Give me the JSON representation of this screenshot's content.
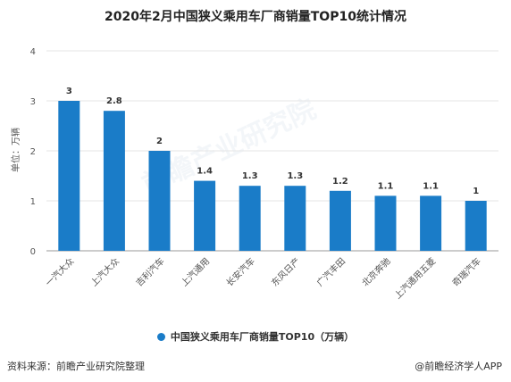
{
  "title": "2020年2月中国狭义乘用车厂商销量TOP10统计情况",
  "source": "资料来源：前瞻产业研究院整理",
  "brand": "@前瞻经济学人APP",
  "watermark": "前瞻产业研究院",
  "colors": {
    "bar": "#1a7cc8",
    "grid": "#e6e6e6",
    "axis": "#999999"
  },
  "chart_data": {
    "type": "bar",
    "title": "2020年2月中国狭义乘用车厂商销量TOP10统计情况",
    "ylabel": "单位：万辆",
    "xlabel": "",
    "ylim": [
      0,
      4
    ],
    "yticks": [
      0,
      1,
      2,
      3,
      4
    ],
    "grid": true,
    "legend_position": "bottom",
    "categories": [
      "一汽大众",
      "上汽大众",
      "吉利汽车",
      "上汽通用",
      "长安汽车",
      "东风日产",
      "广汽丰田",
      "北京奔驰",
      "上汽通用五菱",
      "奇瑞汽车"
    ],
    "series": [
      {
        "name": "中国狭义乘用车厂商销量TOP10（万辆）",
        "values": [
          3,
          2.8,
          2,
          1.4,
          1.3,
          1.3,
          1.2,
          1.1,
          1.1,
          1
        ]
      }
    ],
    "data_labels": [
      "3",
      "2.8",
      "2",
      "1.4",
      "1.3",
      "1.3",
      "1.2",
      "1.1",
      "1.1",
      "1"
    ]
  }
}
